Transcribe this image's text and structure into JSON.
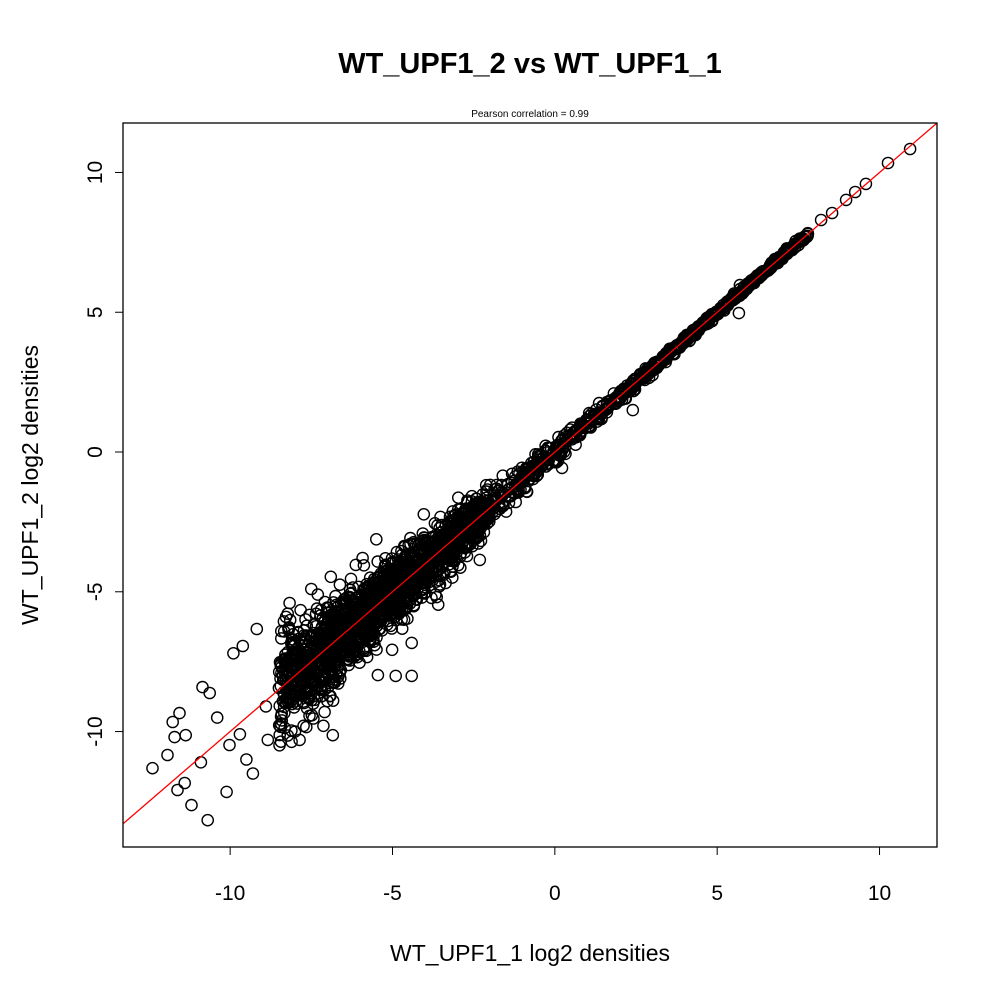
{
  "chart_data": {
    "type": "scatter",
    "title": "WT_UPF1_2 vs WT_UPF1_1",
    "subtitle": "Pearson correlation =  0.99",
    "xlabel": "WT_UPF1_1 log2 densities",
    "ylabel": "WT_UPF1_2 log2 densities",
    "xlim": [
      -13.3,
      11.77
    ],
    "ylim": [
      -14.13,
      11.77
    ],
    "xticks": [
      -10,
      -5,
      0,
      5,
      10
    ],
    "yticks": [
      -10,
      -5,
      0,
      5,
      10
    ],
    "xtick_labels": [
      "-10",
      "-5",
      "0",
      "5",
      "10"
    ],
    "ytick_labels": [
      "-10",
      "-5",
      "0",
      "5",
      "10"
    ],
    "grid": false,
    "marker": "open-circle",
    "reference_line": {
      "slope": 1,
      "intercept": 0,
      "color": "#ff0000"
    },
    "correlation": 0.99,
    "dense_core": {
      "n": 2600,
      "x_range": [
        -8.5,
        7.8
      ],
      "note_noise_sd_at": {
        "-7": 1.1,
        "0": 0.25,
        "5": 0.08
      }
    },
    "points": [
      [
        -12.39,
        -11.31
      ],
      [
        -11.93,
        -10.84
      ],
      [
        -11.77,
        -9.66
      ],
      [
        -11.71,
        -10.2
      ],
      [
        -11.62,
        -12.09
      ],
      [
        -11.4,
        -11.84
      ],
      [
        -11.19,
        -12.63
      ],
      [
        -10.69,
        -13.17
      ],
      [
        -10.11,
        -12.16
      ],
      [
        -10.85,
        -8.41
      ],
      [
        -10.63,
        -8.62
      ],
      [
        -11.37,
        -10.13
      ],
      [
        -11.56,
        -9.34
      ],
      [
        -9.18,
        -6.33
      ],
      [
        -9.61,
        -6.94
      ],
      [
        -8.17,
        -5.4
      ],
      [
        -6.13,
        -4.04
      ],
      [
        -5.92,
        -3.79
      ],
      [
        -4.78,
        -4.47
      ],
      [
        -4.41,
        -6.83
      ],
      [
        -4.41,
        -8.01
      ],
      [
        -4.9,
        -8.01
      ],
      [
        -5.45,
        -7.98
      ],
      [
        -5.55,
        -6.91
      ],
      [
        -3.64,
        -5.19
      ],
      [
        -2.31,
        -3.86
      ],
      [
        2.4,
        1.5
      ],
      [
        0.22,
        -0.57
      ],
      [
        -7.86,
        -10.3
      ],
      [
        -6.84,
        -10.13
      ],
      [
        -7.09,
        -9.3
      ],
      [
        -8.32,
        -9.87
      ],
      [
        -8.84,
        -10.3
      ],
      [
        -10.02,
        -10.48
      ],
      [
        -7.64,
        -8.52
      ],
      [
        10.94,
        10.84
      ],
      [
        10.26,
        10.34
      ],
      [
        9.58,
        9.59
      ],
      [
        9.25,
        9.3
      ],
      [
        8.97,
        9.02
      ],
      [
        8.54,
        8.55
      ],
      [
        5.67,
        4.97
      ],
      [
        4.16,
        4.0
      ],
      [
        2.77,
        2.58
      ],
      [
        5.7,
        5.97
      ],
      [
        -7.5,
        -4.9
      ],
      [
        -7.3,
        -5.1
      ],
      [
        -9.9,
        -7.2
      ],
      [
        -10.4,
        -9.5
      ],
      [
        -9.5,
        -11.0
      ],
      [
        -9.3,
        -11.5
      ],
      [
        -9.7,
        -10.1
      ],
      [
        -8.9,
        -9.1
      ],
      [
        -10.9,
        -11.1
      ],
      [
        8.2,
        8.3
      ],
      [
        7.5,
        7.4
      ]
    ]
  }
}
